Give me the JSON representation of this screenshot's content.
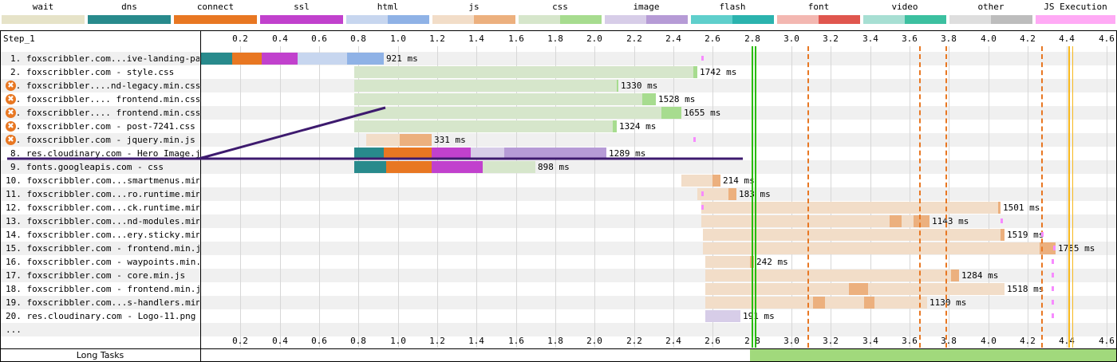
{
  "legend": [
    {
      "name": "wait",
      "c1": "#e6e3c8",
      "c2": "#e6e3c8"
    },
    {
      "name": "dns",
      "c1": "#288a8c",
      "c2": "#288a8c"
    },
    {
      "name": "connect",
      "c1": "#e87722",
      "c2": "#e87722"
    },
    {
      "name": "ssl",
      "c1": "#c141cd",
      "c2": "#c141cd"
    },
    {
      "name": "html",
      "c1": "#c7d6ef",
      "c2": "#8fb2e6"
    },
    {
      "name": "js",
      "c1": "#f2ddc8",
      "c2": "#ecb07e"
    },
    {
      "name": "css",
      "c1": "#d6e6cb",
      "c2": "#a7dc8f"
    },
    {
      "name": "image",
      "c1": "#d7cde8",
      "c2": "#b69bd6"
    },
    {
      "name": "flash",
      "c1": "#5fcfcc",
      "c2": "#2bb3ae"
    },
    {
      "name": "font",
      "c1": "#f3b7b1",
      "c2": "#e0564e"
    },
    {
      "name": "video",
      "c1": "#a7dfd3",
      "c2": "#3cc0a0"
    },
    {
      "name": "other",
      "c1": "#dedede",
      "c2": "#bdbdbd"
    },
    {
      "name": "JS Execution",
      "c1": "#ffaaf5",
      "c2": "#ffaaf5"
    }
  ],
  "step_title": "Step_1",
  "axis_ticks": [
    "0.2",
    "0.4",
    "0.6",
    "0.8",
    "1.0",
    "1.2",
    "1.4",
    "1.6",
    "1.8",
    "2.0",
    "2.2",
    "2.4",
    "2.6",
    "2.8",
    "3.0",
    "3.2",
    "3.4",
    "3.6",
    "3.8",
    "4.0",
    "4.2",
    "4.4",
    "4.6"
  ],
  "requests": [
    {
      "label": "1. foxscribbler.com...ive-landing-page/",
      "warn": false,
      "duration": "921 ms"
    },
    {
      "label": "2. foxscribbler.com - style.css",
      "warn": false,
      "duration": "1742 ms"
    },
    {
      "label": "3. foxscribbler....nd-legacy.min.css",
      "warn": true,
      "duration": "1330 ms"
    },
    {
      "label": "4. foxscribbler.... frontend.min.css",
      "warn": true,
      "duration": "1528 ms"
    },
    {
      "label": "5. foxscribbler.... frontend.min.css",
      "warn": true,
      "duration": "1655 ms"
    },
    {
      "label": "6. foxscribbler.com - post-7241.css",
      "warn": true,
      "duration": "1324 ms"
    },
    {
      "label": "7. foxscribbler.com - jquery.min.js",
      "warn": true,
      "duration": "331 ms"
    },
    {
      "label": "8. res.cloudinary.com - Hero_Image.jpg",
      "warn": false,
      "duration": "1289 ms"
    },
    {
      "label": "9. fonts.googleapis.com - css",
      "warn": false,
      "duration": "898 ms"
    },
    {
      "label": "10. foxscribbler.com...smartmenus.min.js",
      "warn": false,
      "duration": "214 ms"
    },
    {
      "label": "11. foxscribbler.com...ro.runtime.min.js",
      "warn": false,
      "duration": "183 ms"
    },
    {
      "label": "12. foxscribbler.com...ck.runtime.min.js",
      "warn": false,
      "duration": "1501 ms"
    },
    {
      "label": "13. foxscribbler.com...nd-modules.min.js",
      "warn": false,
      "duration": "1143 ms"
    },
    {
      "label": "14. foxscribbler.com...ery.sticky.min.js",
      "warn": false,
      "duration": "1519 ms"
    },
    {
      "label": "15. foxscribbler.com - frontend.min.js",
      "warn": false,
      "duration": "1785 ms"
    },
    {
      "label": "16. foxscribbler.com - waypoints.min.js",
      "warn": false,
      "duration": "242 ms"
    },
    {
      "label": "17. foxscribbler.com - core.min.js",
      "warn": false,
      "duration": "1284 ms"
    },
    {
      "label": "18. foxscribbler.com - frontend.min.js",
      "warn": false,
      "duration": "1518 ms"
    },
    {
      "label": "19. foxscribbler.com...s-handlers.min.js",
      "warn": false,
      "duration": "1130 ms"
    },
    {
      "label": "20. res.cloudinary.com - Logo-11.png",
      "warn": false,
      "duration": "191 ms"
    },
    {
      "label": "...",
      "warn": false,
      "duration": ""
    }
  ],
  "long_tasks_label": "Long Tasks",
  "colors": {
    "start_render": "#28bc00",
    "dom_loaded": "#e87722",
    "onload": "#f7b81e",
    "annotation_line": "#3d1a6e"
  }
}
